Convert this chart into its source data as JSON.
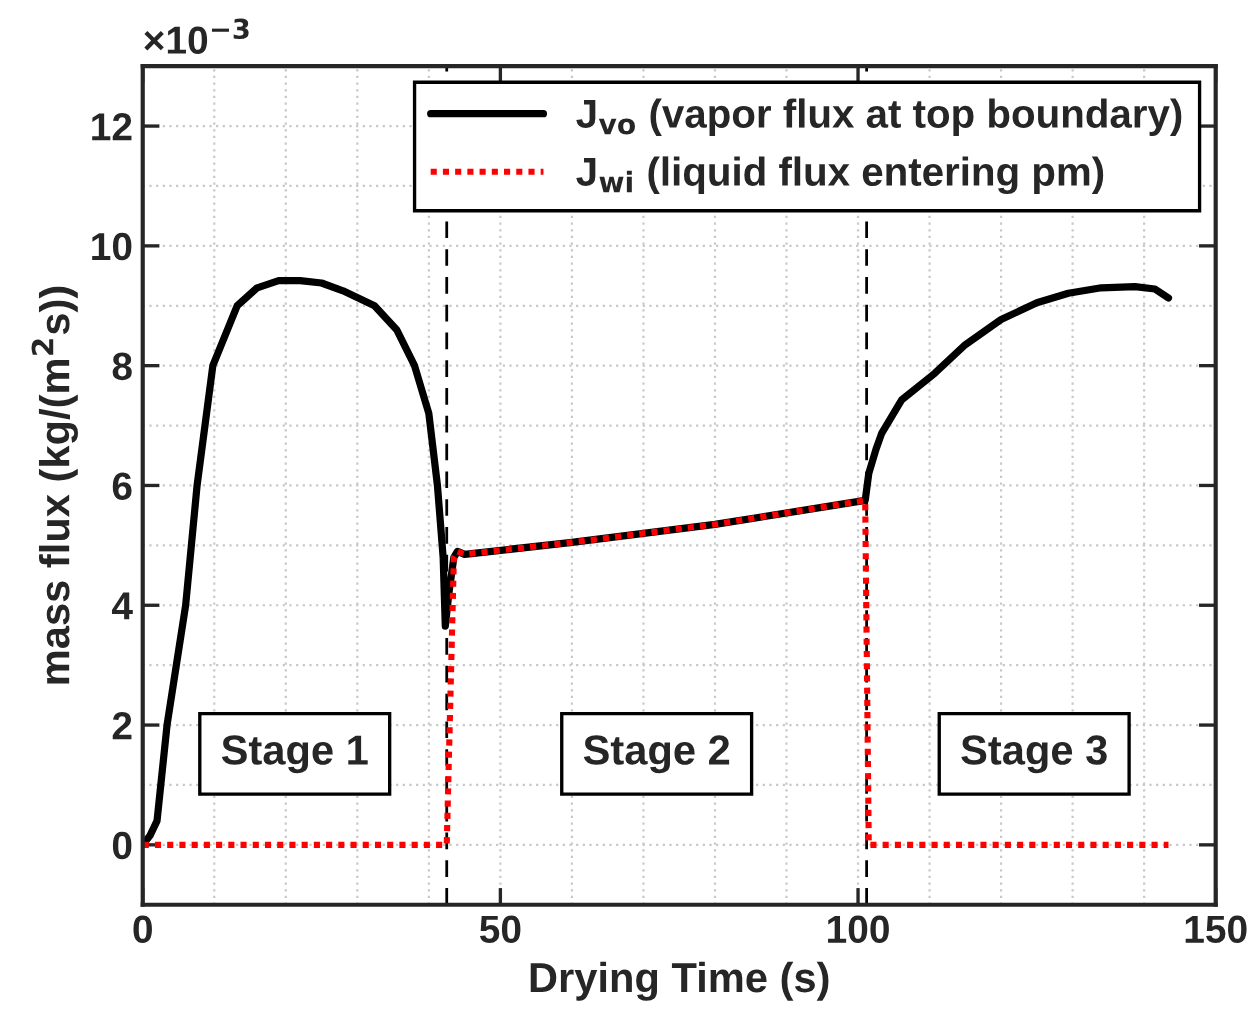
{
  "chart_data": {
    "type": "line",
    "xlabel": "Drying Time (s)",
    "ylabel": "mass flux (kg/(m$^{2}$s))",
    "xlim": [
      0,
      150
    ],
    "xticks": [
      0,
      50,
      100,
      150
    ],
    "ylim": [
      -1,
      13
    ],
    "yticks": [
      0,
      2,
      4,
      6,
      8,
      10,
      12
    ],
    "grid": true,
    "legend": "top right",
    "series": [
      {
        "name": "J$_{vo}$ (vapor flux at top boundary)",
        "color": "#000000",
        "line_style": "solid",
        "x": [
          0,
          1,
          2,
          3.4,
          4.7,
          6.0,
          7.6,
          9.8,
          13.2,
          16,
          19,
          22,
          25,
          28,
          32.4,
          35.5,
          38,
          40,
          41.2,
          42,
          42.3,
          42.8,
          43.5,
          44,
          45,
          60,
          80,
          101,
          101.5,
          102.5,
          103.3,
          106.1,
          110.7,
          115,
          120,
          125,
          129.4,
          134,
          138.7,
          141.5,
          143.4
        ],
        "values": [
          0,
          0.15,
          0.4,
          2,
          3,
          4,
          6,
          8,
          9,
          9.3,
          9.42,
          9.42,
          9.38,
          9.25,
          9,
          8.6,
          8,
          7.2,
          6,
          4.8,
          3.65,
          4.2,
          4.8,
          4.9,
          4.85,
          5.05,
          5.35,
          5.75,
          6.2,
          6.6,
          6.87,
          7.43,
          7.87,
          8.35,
          8.77,
          9.05,
          9.21,
          9.3,
          9.32,
          9.28,
          9.13
        ]
      },
      {
        "name": "J$_{wi}$ (liquid flux entering pm)",
        "color": "#ff0000",
        "line_style": "dotted",
        "x": [
          0,
          42.5,
          43.5,
          44,
          45,
          60,
          80,
          101,
          101.5,
          143.4
        ],
        "values": [
          0,
          0,
          4.8,
          4.9,
          4.85,
          5.05,
          5.35,
          5.75,
          0,
          0
        ]
      }
    ],
    "ref_lines": [
      {
        "axis": "x",
        "value": 42.5,
        "color": "#000000",
        "line_style": "dashed"
      },
      {
        "axis": "x",
        "value": 101.2,
        "color": "#000000",
        "line_style": "dashed"
      }
    ],
    "annotations": [
      "×10$^{−3}$",
      "Stage 1",
      "Stage 2",
      "Stage 3"
    ]
  }
}
